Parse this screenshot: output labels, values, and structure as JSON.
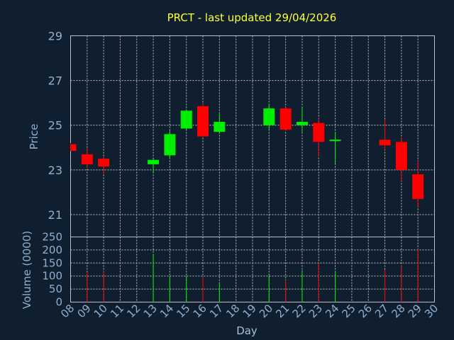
{
  "chart_data": {
    "type": "candlestick",
    "title": "PRCT - last updated 29/04/2026",
    "xlabel": "Day",
    "ylabel": "Price",
    "volume_label": "Volume (0000)",
    "x_ticks": [
      "08",
      "09",
      "10",
      "11",
      "12",
      "13",
      "14",
      "15",
      "16",
      "17",
      "18",
      "19",
      "20",
      "21",
      "22",
      "23",
      "24",
      "25",
      "26",
      "27",
      "28",
      "29",
      "30"
    ],
    "price_ticks": [
      "21",
      "23",
      "25",
      "27",
      "29"
    ],
    "volume_ticks": [
      "0",
      "50",
      "100",
      "150",
      "200",
      "250"
    ],
    "price_range": [
      20,
      29
    ],
    "volume_range": [
      0,
      250
    ],
    "grid": true,
    "colors": {
      "up": "#00ee00",
      "down": "#ff0000",
      "grid": "#c0c0c0",
      "background": "#0f1f30"
    },
    "candles": [
      {
        "day": 8,
        "open": 24.15,
        "high": 24.2,
        "low": 23.85,
        "close": 23.85,
        "volume": 0
      },
      {
        "day": 9,
        "open": 23.7,
        "high": 24.0,
        "low": 23.1,
        "close": 23.25,
        "volume": 115
      },
      {
        "day": 10,
        "open": 23.5,
        "high": 23.6,
        "low": 22.8,
        "close": 23.15,
        "volume": 118
      },
      {
        "day": 13,
        "open": 23.25,
        "high": 23.5,
        "low": 22.9,
        "close": 23.45,
        "volume": 185
      },
      {
        "day": 14,
        "open": 23.65,
        "high": 24.75,
        "low": 23.5,
        "close": 24.6,
        "volume": 100
      },
      {
        "day": 15,
        "open": 24.85,
        "high": 25.65,
        "low": 24.8,
        "close": 25.65,
        "volume": 100
      },
      {
        "day": 16,
        "open": 25.85,
        "high": 26.0,
        "low": 24.45,
        "close": 24.5,
        "volume": 97
      },
      {
        "day": 17,
        "open": 24.7,
        "high": 25.5,
        "low": 24.65,
        "close": 25.15,
        "volume": 75
      },
      {
        "day": 20,
        "open": 25.0,
        "high": 25.95,
        "low": 24.8,
        "close": 25.75,
        "volume": 102
      },
      {
        "day": 21,
        "open": 25.75,
        "high": 25.8,
        "low": 24.75,
        "close": 24.8,
        "volume": 85
      },
      {
        "day": 22,
        "open": 25.0,
        "high": 25.8,
        "low": 24.7,
        "close": 25.15,
        "volume": 122
      },
      {
        "day": 23,
        "open": 25.1,
        "high": 25.3,
        "low": 23.6,
        "close": 24.25,
        "volume": 150
      },
      {
        "day": 24,
        "open": 24.3,
        "high": 24.65,
        "low": 23.3,
        "close": 24.35,
        "volume": 120
      },
      {
        "day": 27,
        "open": 24.35,
        "high": 25.25,
        "low": 23.9,
        "close": 24.1,
        "volume": 125
      },
      {
        "day": 28,
        "open": 24.25,
        "high": 24.45,
        "low": 22.5,
        "close": 23.0,
        "volume": 140
      },
      {
        "day": 29,
        "open": 22.8,
        "high": 23.4,
        "low": 21.3,
        "close": 21.7,
        "volume": 205
      }
    ]
  }
}
